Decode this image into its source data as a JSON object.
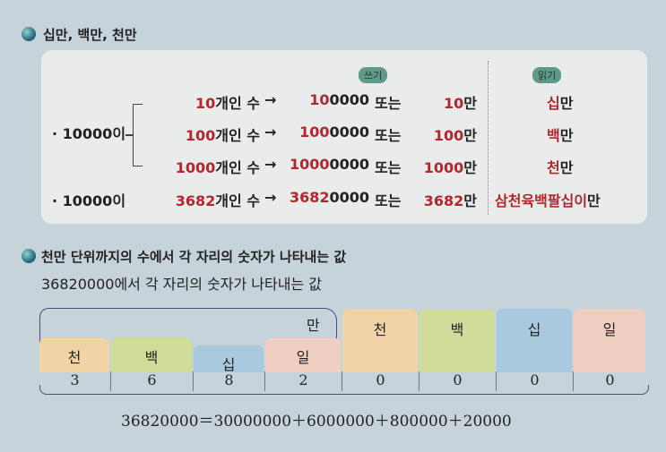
{
  "section1": {
    "title": "십만, 백만, 천만"
  },
  "card": {
    "write_label": "쓰기",
    "read_label": "읽기",
    "group_label": "· 10000이",
    "rows": [
      {
        "count_red": "10",
        "count_rest": "개인 수",
        "arrow": "→",
        "num_red": "10",
        "num_rest": "0000",
        "or": "또는",
        "man_red": "10",
        "man_rest": "만",
        "read_red": "십",
        "read_rest": "만"
      },
      {
        "count_red": "100",
        "count_rest": "개인 수",
        "arrow": "→",
        "num_red": "100",
        "num_rest": "0000",
        "or": "또는",
        "man_red": "100",
        "man_rest": "만",
        "read_red": "백",
        "read_rest": "만"
      },
      {
        "count_red": "1000",
        "count_rest": "개인 수",
        "arrow": "→",
        "num_red": "1000",
        "num_rest": "0000",
        "or": "또는",
        "man_red": "1000",
        "man_rest": "만",
        "read_red": "천",
        "read_rest": "만"
      }
    ],
    "last": {
      "label": "· 10000이",
      "count_red": "3682",
      "count_rest": "개인 수",
      "arrow": "→",
      "num_red": "3682",
      "num_rest": "0000",
      "or": "또는",
      "man_red": "3682",
      "man_rest": "만",
      "read_red": "삼천육백팔십이",
      "read_rest": "만"
    }
  },
  "section2": {
    "title": "천만 단위까지의 수에서 각 자리의 숫자가 나타내는 값",
    "subtitle": "36820000에서 각 자리의 숫자가 나타내는 값"
  },
  "place_table": {
    "man_label": "만",
    "places": [
      "천",
      "백",
      "십",
      "일",
      "천",
      "백",
      "십",
      "일"
    ],
    "digits": [
      "3",
      "6",
      "8",
      "2",
      "0",
      "0",
      "0",
      "0"
    ],
    "colors": [
      "#f2d3a6",
      "#cfdc9a",
      "#a9c9de",
      "#f0cfc2"
    ]
  },
  "equation": "36820000＝30000000＋6000000＋800000＋20000"
}
